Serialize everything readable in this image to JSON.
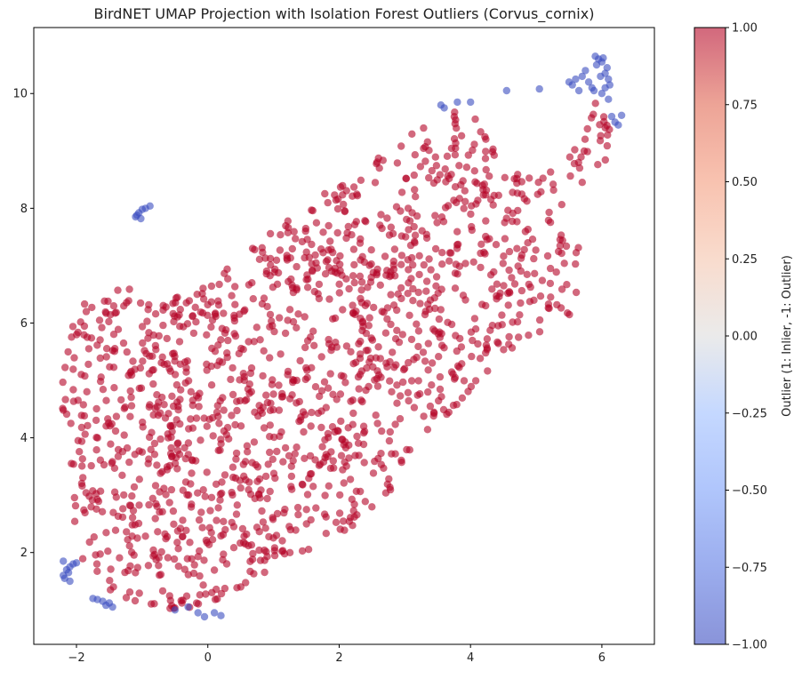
{
  "chart_data": {
    "type": "scatter",
    "title": "BirdNET UMAP Projection with Isolation Forest Outliers (Corvus_cornix)",
    "xlabel": "",
    "ylabel": "",
    "xlim": [
      -2.65,
      6.8
    ],
    "ylim": [
      0.4,
      11.15
    ],
    "x_ticks": [
      -2,
      0,
      2,
      4,
      6
    ],
    "y_ticks": [
      2,
      4,
      6,
      8,
      10
    ],
    "grid": false,
    "colorbar": {
      "label": "Outlier (1: Inlier, -1: Outlier)",
      "range": [
        -1.0,
        1.0
      ],
      "ticks": [
        -1.0,
        -0.75,
        -0.5,
        -0.25,
        0.0,
        0.25,
        0.5,
        0.75,
        1.0
      ],
      "tick_labels": [
        "−1.00",
        "−0.75",
        "−0.50",
        "−0.25",
        "0.00",
        "0.25",
        "0.50",
        "0.75",
        "1.00"
      ],
      "colormap": "coolwarm",
      "low_color": "#3b4cc0",
      "mid_color": "#dddddd",
      "high_color": "#b40426"
    },
    "inlier_color": "#b40426",
    "outlier_color": "#3b4cc0",
    "point_alpha": 0.6,
    "outlier_points": [
      [
        -1.1,
        7.85
      ],
      [
        -1.05,
        7.92
      ],
      [
        -1.0,
        7.98
      ],
      [
        -0.95,
        8.0
      ],
      [
        -0.88,
        8.04
      ],
      [
        -1.08,
        7.88
      ],
      [
        -1.02,
        7.82
      ],
      [
        -2.2,
        1.6
      ],
      [
        -2.15,
        1.7
      ],
      [
        -2.1,
        1.75
      ],
      [
        -2.05,
        1.8
      ],
      [
        -2.2,
        1.85
      ],
      [
        -2.1,
        1.5
      ],
      [
        -2.0,
        1.82
      ],
      [
        -2.18,
        1.55
      ],
      [
        -2.12,
        1.65
      ],
      [
        -1.75,
        1.2
      ],
      [
        -1.68,
        1.18
      ],
      [
        -1.6,
        1.15
      ],
      [
        -1.5,
        1.12
      ],
      [
        -1.45,
        1.05
      ],
      [
        -1.55,
        1.08
      ],
      [
        -0.5,
        1.0
      ],
      [
        -0.3,
        1.05
      ],
      [
        -0.15,
        0.95
      ],
      [
        -0.05,
        0.88
      ],
      [
        0.1,
        0.95
      ],
      [
        0.2,
        0.9
      ],
      [
        3.55,
        9.8
      ],
      [
        3.6,
        9.75
      ],
      [
        3.8,
        9.85
      ],
      [
        4.0,
        9.85
      ],
      [
        4.55,
        10.05
      ],
      [
        5.05,
        10.08
      ],
      [
        5.5,
        10.2
      ],
      [
        5.55,
        10.15
      ],
      [
        5.6,
        10.25
      ],
      [
        5.65,
        10.05
      ],
      [
        5.7,
        10.3
      ],
      [
        5.75,
        10.4
      ],
      [
        5.8,
        10.2
      ],
      [
        5.85,
        10.1
      ],
      [
        5.9,
        10.65
      ],
      [
        5.95,
        10.6
      ],
      [
        6.0,
        10.55
      ],
      [
        5.92,
        10.5
      ],
      [
        6.02,
        10.62
      ],
      [
        5.98,
        10.3
      ],
      [
        6.05,
        10.35
      ],
      [
        6.1,
        10.25
      ],
      [
        6.0,
        10.0
      ],
      [
        6.05,
        10.1
      ],
      [
        6.1,
        9.9
      ],
      [
        6.15,
        9.6
      ],
      [
        6.2,
        9.5
      ],
      [
        6.25,
        9.45
      ],
      [
        6.3,
        9.62
      ],
      [
        6.08,
        10.45
      ],
      [
        5.88,
        10.05
      ],
      [
        6.12,
        10.15
      ]
    ],
    "inlier_count": 1500,
    "inlier_region": [
      [
        -2.25,
        5.2
      ],
      [
        -2.1,
        6.2
      ],
      [
        -1.6,
        6.5
      ],
      [
        -1.2,
        6.65
      ],
      [
        -0.6,
        6.5
      ],
      [
        -0.2,
        6.6
      ],
      [
        0.2,
        6.9
      ],
      [
        0.5,
        7.2
      ],
      [
        0.9,
        7.6
      ],
      [
        1.4,
        8.0
      ],
      [
        1.9,
        8.4
      ],
      [
        2.4,
        8.8
      ],
      [
        2.9,
        9.1
      ],
      [
        3.3,
        9.5
      ],
      [
        3.6,
        9.72
      ],
      [
        3.9,
        9.72
      ],
      [
        4.1,
        9.62
      ],
      [
        4.3,
        9.1
      ],
      [
        4.6,
        8.75
      ],
      [
        5.0,
        8.6
      ],
      [
        5.4,
        8.7
      ],
      [
        5.75,
        9.5
      ],
      [
        5.9,
        9.9
      ],
      [
        6.15,
        9.55
      ],
      [
        6.05,
        8.8
      ],
      [
        5.6,
        8.3
      ],
      [
        5.3,
        7.8
      ],
      [
        5.75,
        7.2
      ],
      [
        5.65,
        6.2
      ],
      [
        5.2,
        5.85
      ],
      [
        4.7,
        5.6
      ],
      [
        4.1,
        5.0
      ],
      [
        3.8,
        4.5
      ],
      [
        3.4,
        4.0
      ],
      [
        2.9,
        3.2
      ],
      [
        2.5,
        2.7
      ],
      [
        2.0,
        2.3
      ],
      [
        1.4,
        1.85
      ],
      [
        0.9,
        1.6
      ],
      [
        0.4,
        1.25
      ],
      [
        -0.1,
        1.05
      ],
      [
        -0.7,
        1.0
      ],
      [
        -1.2,
        1.1
      ],
      [
        -1.6,
        1.35
      ],
      [
        -1.9,
        1.7
      ],
      [
        -2.05,
        2.6
      ],
      [
        -2.1,
        3.5
      ],
      [
        -2.2,
        4.3
      ]
    ]
  }
}
